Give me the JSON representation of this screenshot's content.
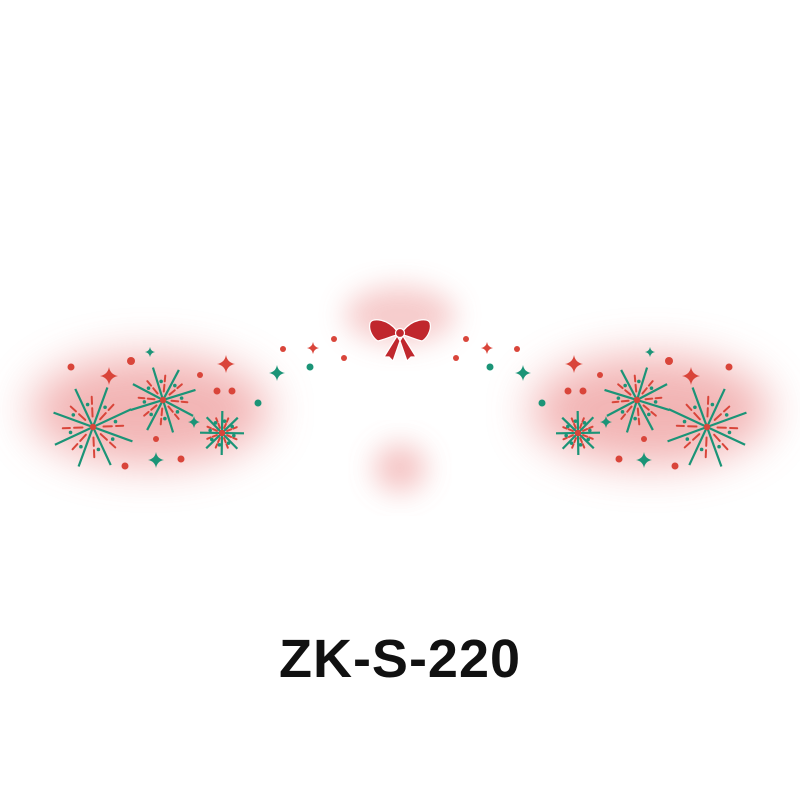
{
  "product": {
    "code": "ZK-S-220"
  },
  "colors": {
    "red": "#d9453a",
    "green": "#1b9477",
    "bow": "#c0272d",
    "blush": "#ee9b9b"
  },
  "icons": [
    "firework-icon",
    "sparkle-icon",
    "bow-icon",
    "dot-icon"
  ]
}
